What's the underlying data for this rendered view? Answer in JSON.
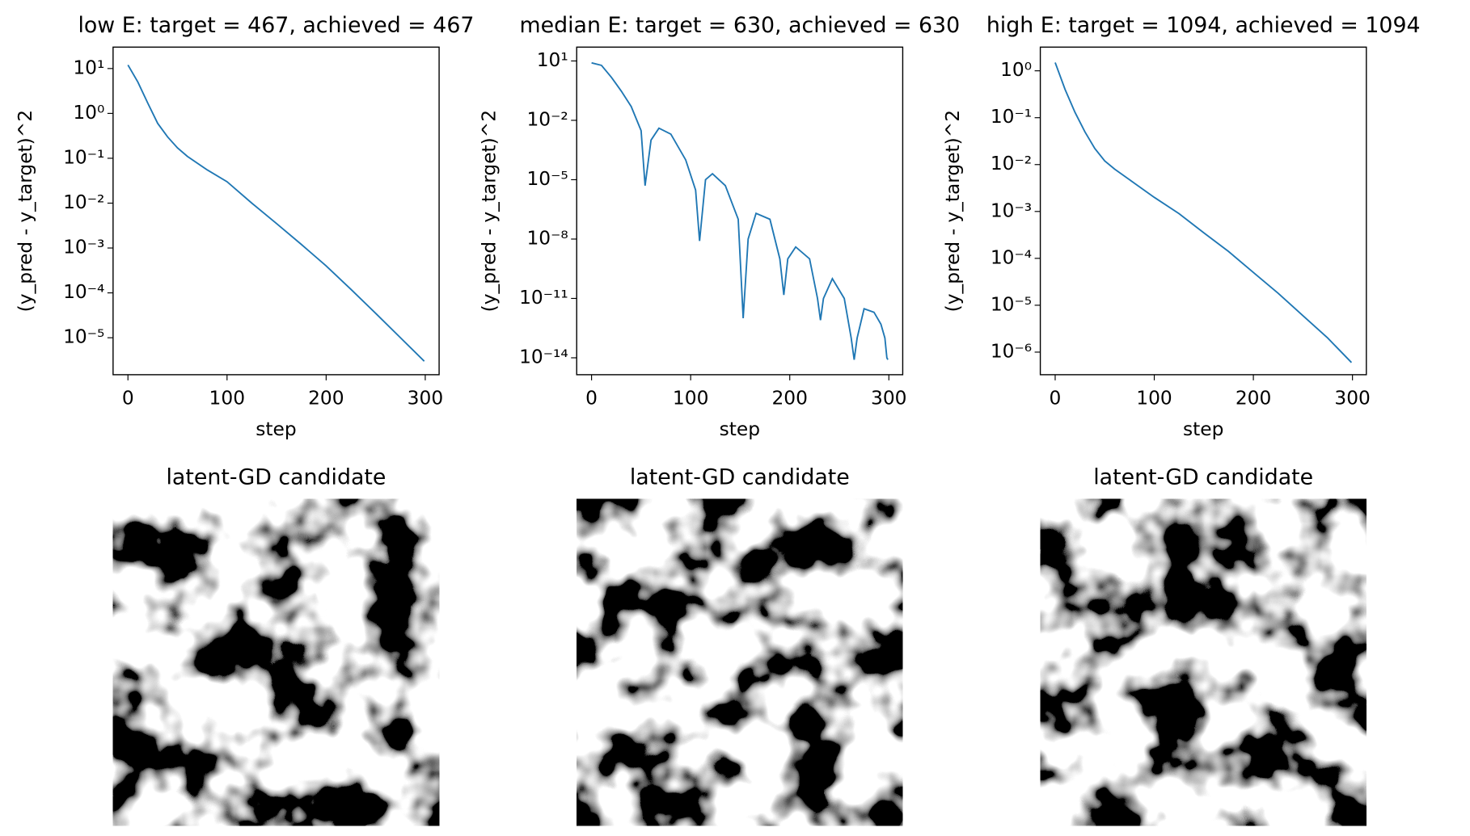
{
  "chart_data": [
    {
      "type": "line",
      "title": "low E: target = 467, achieved = 467",
      "xlabel": "step",
      "ylabel": "(y_pred - y_target)^2",
      "log_y": true,
      "color": "#1f77b4",
      "x": [
        0,
        10,
        20,
        30,
        40,
        50,
        60,
        80,
        100,
        125,
        150,
        175,
        200,
        225,
        250,
        275,
        299
      ],
      "values": [
        12,
        5,
        1.7,
        0.6,
        0.3,
        0.17,
        0.11,
        0.055,
        0.03,
        0.01,
        0.0035,
        0.0012,
        0.0004,
        0.00012,
        3.5e-05,
        1e-05,
        3e-06
      ],
      "xlim": [
        -15,
        314
      ],
      "ylim": [
        1.5e-06,
        30
      ],
      "xticks": [
        0,
        100,
        200,
        300
      ],
      "yticks": [
        {
          "value": 10,
          "label": "10¹"
        },
        {
          "value": 1,
          "label": "10⁰"
        },
        {
          "value": 0.1,
          "label": "10⁻¹"
        },
        {
          "value": 0.01,
          "label": "10⁻²"
        },
        {
          "value": 0.001,
          "label": "10⁻³"
        },
        {
          "value": 0.0001,
          "label": "10⁻⁴"
        },
        {
          "value": 1e-05,
          "label": "10⁻⁵"
        }
      ]
    },
    {
      "type": "line",
      "title": "median E: target = 630, achieved = 630",
      "xlabel": "step",
      "ylabel": "(y_pred - y_target)^2",
      "log_y": true,
      "color": "#1f77b4",
      "x": [
        0,
        10,
        20,
        30,
        40,
        50,
        54,
        60,
        68,
        80,
        95,
        105,
        109,
        115,
        122,
        135,
        148,
        153,
        158,
        166,
        180,
        190,
        194,
        198,
        206,
        220,
        228,
        231,
        234,
        243,
        255,
        262,
        265,
        268,
        275,
        285,
        292,
        296,
        298,
        299
      ],
      "values": [
        8,
        6,
        1.5,
        0.3,
        0.05,
        0.003,
        5e-06,
        0.001,
        0.004,
        0.002,
        0.0001,
        3e-06,
        8e-09,
        1e-05,
        2e-05,
        5e-06,
        1e-07,
        1e-12,
        1e-08,
        2e-07,
        1e-07,
        1e-09,
        1.5e-11,
        1e-09,
        4e-09,
        1e-09,
        1e-11,
        8e-13,
        1e-11,
        1e-10,
        1e-11,
        1e-13,
        8e-15,
        1e-13,
        3e-12,
        2e-12,
        5e-13,
        1e-13,
        1e-14,
        8e-15
      ],
      "xlim": [
        -15,
        314
      ],
      "ylim": [
        1.4e-15,
        50
      ],
      "xticks": [
        0,
        100,
        200,
        300
      ],
      "yticks": [
        {
          "value": 10,
          "label": "10¹"
        },
        {
          "value": 0.01,
          "label": "10⁻²"
        },
        {
          "value": 1e-05,
          "label": "10⁻⁵"
        },
        {
          "value": 1e-08,
          "label": "10⁻⁸"
        },
        {
          "value": 1e-11,
          "label": "10⁻¹¹"
        },
        {
          "value": 1e-14,
          "label": "10⁻¹⁴"
        }
      ]
    },
    {
      "type": "line",
      "title": "high E: target = 1094, achieved = 1094",
      "xlabel": "step",
      "ylabel": "(y_pred - y_target)^2",
      "log_y": true,
      "color": "#1f77b4",
      "x": [
        0,
        10,
        20,
        30,
        40,
        50,
        60,
        80,
        100,
        125,
        150,
        175,
        200,
        225,
        250,
        275,
        299
      ],
      "values": [
        1.5,
        0.4,
        0.13,
        0.05,
        0.022,
        0.012,
        0.008,
        0.004,
        0.002,
        0.0009,
        0.00035,
        0.00014,
        5e-05,
        1.8e-05,
        6e-06,
        2e-06,
        6e-07
      ],
      "xlim": [
        -15,
        314
      ],
      "ylim": [
        3.3e-07,
        3.2
      ],
      "xticks": [
        0,
        100,
        200,
        300
      ],
      "yticks": [
        {
          "value": 1,
          "label": "10⁰"
        },
        {
          "value": 0.1,
          "label": "10⁻¹"
        },
        {
          "value": 0.01,
          "label": "10⁻²"
        },
        {
          "value": 0.001,
          "label": "10⁻³"
        },
        {
          "value": 0.0001,
          "label": "10⁻⁴"
        },
        {
          "value": 1e-05,
          "label": "10⁻⁵"
        },
        {
          "value": 1e-06,
          "label": "10⁻⁶"
        }
      ]
    },
    {
      "type": "image",
      "title": "latent-GD candidate"
    },
    {
      "type": "image",
      "title": "latent-GD candidate"
    },
    {
      "type": "image",
      "title": "latent-GD candidate"
    }
  ]
}
